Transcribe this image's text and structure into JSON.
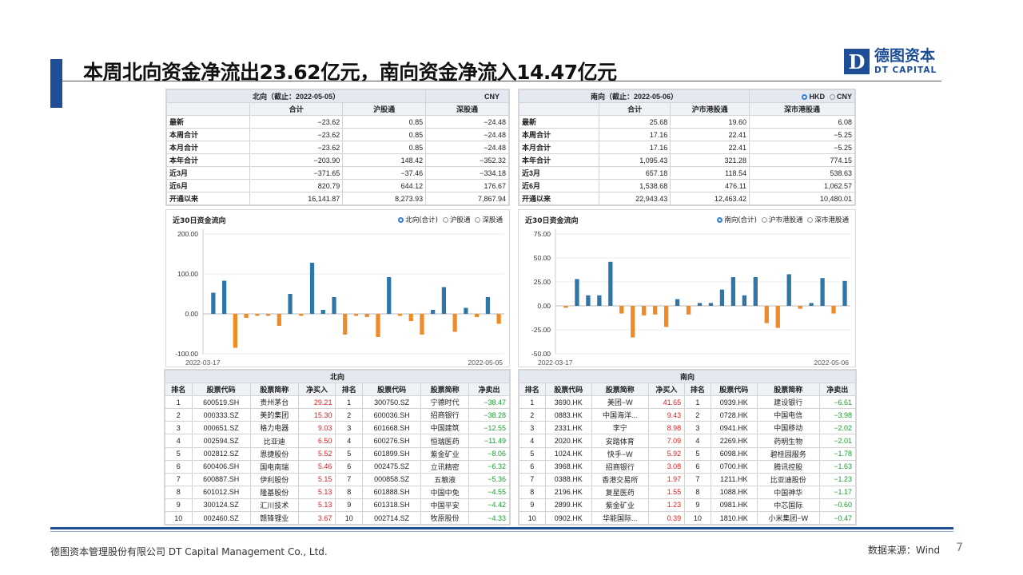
{
  "title": "本周北向资金净流出23.62亿元，南向资金净流入14.47亿元",
  "logo": {
    "mark": "D",
    "cn": "德图资本",
    "en": "DT CAPITAL"
  },
  "footer": {
    "company": "德图资本管理股份有限公司 DT Capital Management Co., Ltd.",
    "source": "数据来源：Wind",
    "page": "7"
  },
  "north_summary": {
    "title": "北向（截止：2022-05-05）",
    "currency": "CNY",
    "columns": [
      "",
      "合计",
      "沪股通",
      "深股通"
    ],
    "rows": [
      [
        "最新",
        "−23.62",
        "0.85",
        "−24.48"
      ],
      [
        "本周合计",
        "−23.62",
        "0.85",
        "−24.48"
      ],
      [
        "本月合计",
        "−23.62",
        "0.85",
        "−24.48"
      ],
      [
        "本年合计",
        "−203.90",
        "148.42",
        "−352.32"
      ],
      [
        "近3月",
        "−371.65",
        "−37.46",
        "−334.18"
      ],
      [
        "近6月",
        "820.79",
        "644.12",
        "176.67"
      ],
      [
        "开通以来",
        "16,141.87",
        "8,273.93",
        "7,867.94"
      ]
    ]
  },
  "south_summary": {
    "title": "南向（截止：2022-05-06）",
    "currency_on": "HKD",
    "currency_off": "CNY",
    "columns": [
      "",
      "合计",
      "沪市港股通",
      "深市港股通"
    ],
    "rows": [
      [
        "最新",
        "25.68",
        "19.60",
        "6.08"
      ],
      [
        "本周合计",
        "17.16",
        "22.41",
        "−5.25"
      ],
      [
        "本月合计",
        "17.16",
        "22.41",
        "−5.25"
      ],
      [
        "本年合计",
        "1,095.43",
        "321.28",
        "774.15"
      ],
      [
        "近3月",
        "657.18",
        "118.54",
        "538.63"
      ],
      [
        "近6月",
        "1,538.68",
        "476.11",
        "1,062.57"
      ],
      [
        "开通以来",
        "22,943.43",
        "12,463.42",
        "10,480.01"
      ]
    ]
  },
  "chart_data": [
    {
      "type": "bar",
      "title": "近30日资金流向",
      "legend": [
        "北向(合计)",
        "沪股通",
        "深股通"
      ],
      "legend_selected": "北向(合计)",
      "x_start": "2022-03-17",
      "x_end": "2022-05-05",
      "y_ticks": [
        "200.00",
        "100.00",
        "0.00",
        "-100.00"
      ],
      "ylim": [
        -100,
        200
      ],
      "values": [
        53,
        83,
        -85,
        -10,
        -5,
        -5,
        -30,
        50,
        -5,
        128,
        10,
        42,
        -52,
        -5,
        -8,
        -58,
        92,
        -5,
        -18,
        -52,
        10,
        67,
        -45,
        15,
        -8,
        42,
        -25
      ],
      "colors": {
        "positive": "#2e75a8",
        "negative": "#f08a24"
      }
    },
    {
      "type": "bar",
      "title": "近30日资金流向",
      "legend": [
        "南向(合计)",
        "沪市港股通",
        "深市港股通"
      ],
      "legend_selected": "南向(合计)",
      "x_start": "2022-03-17",
      "x_end": "2022-05-06",
      "y_ticks": [
        "75.00",
        "50.00",
        "25.00",
        "0.00",
        "-25.00",
        "-50.00"
      ],
      "ylim": [
        -50,
        75
      ],
      "values": [
        -2,
        28,
        11,
        11,
        46,
        -8,
        -33,
        -10,
        -9,
        -22,
        7,
        -9,
        3,
        3,
        17,
        30,
        11,
        30,
        -18,
        -23,
        33,
        -3,
        3,
        29,
        -8,
        26
      ],
      "colors": {
        "positive": "#2e75a8",
        "negative": "#f08a24"
      }
    }
  ],
  "north_rank": {
    "title": "北向",
    "columns": [
      "排名",
      "股票代码",
      "股票简称",
      "净买入",
      "排名",
      "股票代码",
      "股票简称",
      "净卖出"
    ],
    "rows": [
      [
        "1",
        "600519.SH",
        "贵州茅台",
        "29.21",
        "1",
        "300750.SZ",
        "宁德时代",
        "−38.47"
      ],
      [
        "2",
        "000333.SZ",
        "美的集团",
        "15.30",
        "2",
        "600036.SH",
        "招商银行",
        "−38.28"
      ],
      [
        "3",
        "000651.SZ",
        "格力电器",
        "9.03",
        "3",
        "601668.SH",
        "中国建筑",
        "−12.55"
      ],
      [
        "4",
        "002594.SZ",
        "比亚迪",
        "6.50",
        "4",
        "600276.SH",
        "恒瑞医药",
        "−11.49"
      ],
      [
        "5",
        "002812.SZ",
        "恩捷股份",
        "5.52",
        "5",
        "601899.SH",
        "紫金矿业",
        "−8.06"
      ],
      [
        "6",
        "600406.SH",
        "国电南瑞",
        "5.46",
        "6",
        "002475.SZ",
        "立讯精密",
        "−6.32"
      ],
      [
        "7",
        "600887.SH",
        "伊利股份",
        "5.15",
        "7",
        "000858.SZ",
        "五粮液",
        "−5.36"
      ],
      [
        "8",
        "601012.SH",
        "隆基股份",
        "5.13",
        "8",
        "601888.SH",
        "中国中免",
        "−4.55"
      ],
      [
        "9",
        "300124.SZ",
        "汇川技术",
        "5.13",
        "9",
        "601318.SH",
        "中国平安",
        "−4.42"
      ],
      [
        "10",
        "002460.SZ",
        "赣锋锂业",
        "3.67",
        "10",
        "002714.SZ",
        "牧原股份",
        "−4.33"
      ]
    ]
  },
  "south_rank": {
    "title": "南向",
    "columns": [
      "排名",
      "股票代码",
      "股票简称",
      "净买入",
      "排名",
      "股票代码",
      "股票简称",
      "净卖出"
    ],
    "rows": [
      [
        "1",
        "3690.HK",
        "美团−W",
        "41.65",
        "1",
        "0939.HK",
        "建设银行",
        "−6.61"
      ],
      [
        "2",
        "0883.HK",
        "中国海洋...",
        "9.43",
        "2",
        "0728.HK",
        "中国电信",
        "−3.98"
      ],
      [
        "3",
        "2331.HK",
        "李宁",
        "8.98",
        "3",
        "0941.HK",
        "中国移动",
        "−2.02"
      ],
      [
        "4",
        "2020.HK",
        "安踏体育",
        "7.09",
        "4",
        "2269.HK",
        "药明生物",
        "−2.01"
      ],
      [
        "5",
        "1024.HK",
        "快手−W",
        "5.92",
        "5",
        "6098.HK",
        "碧桂园服务",
        "−1.78"
      ],
      [
        "6",
        "3968.HK",
        "招商银行",
        "3.08",
        "6",
        "0700.HK",
        "腾讯控股",
        "−1.63"
      ],
      [
        "7",
        "0388.HK",
        "香港交易所",
        "1.97",
        "7",
        "1211.HK",
        "比亚迪股份",
        "−1.23"
      ],
      [
        "8",
        "2196.HK",
        "复星医药",
        "1.55",
        "8",
        "1088.HK",
        "中国神华",
        "−1.17"
      ],
      [
        "9",
        "2899.HK",
        "紫金矿业",
        "1.23",
        "9",
        "0981.HK",
        "中芯国际",
        "−0.60"
      ],
      [
        "10",
        "0902.HK",
        "华能国际...",
        "0.39",
        "10",
        "1810.HK",
        "小米集团−W",
        "−0.47"
      ]
    ]
  }
}
